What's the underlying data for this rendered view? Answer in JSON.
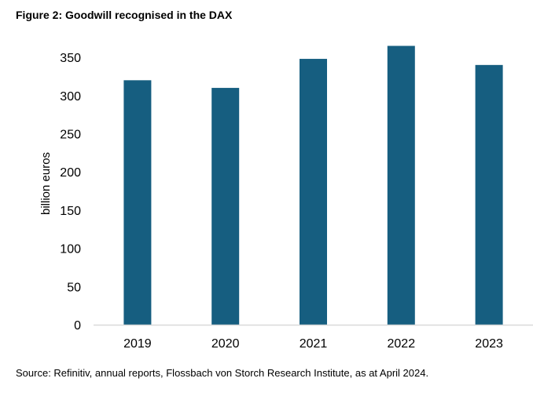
{
  "figure": {
    "title": "Figure 2: Goodwill recognised in the DAX",
    "source": "Source: Refinitiv, annual reports, Flossbach von Storch Research Institute, as at April 2024."
  },
  "chart_data": {
    "type": "bar",
    "title": "Figure 2: Goodwill recognised in the DAX",
    "categories": [
      "2019",
      "2020",
      "2021",
      "2022",
      "2023"
    ],
    "values": [
      320,
      310,
      348,
      365,
      340
    ],
    "xlabel": "",
    "ylabel": "billion euros",
    "ylim": [
      0,
      350
    ],
    "yticks": [
      0,
      50,
      100,
      150,
      200,
      250,
      300,
      350
    ],
    "grid": false,
    "legend": "none",
    "bar_color": "#165e80",
    "axis_color": "#d9d9d9"
  }
}
